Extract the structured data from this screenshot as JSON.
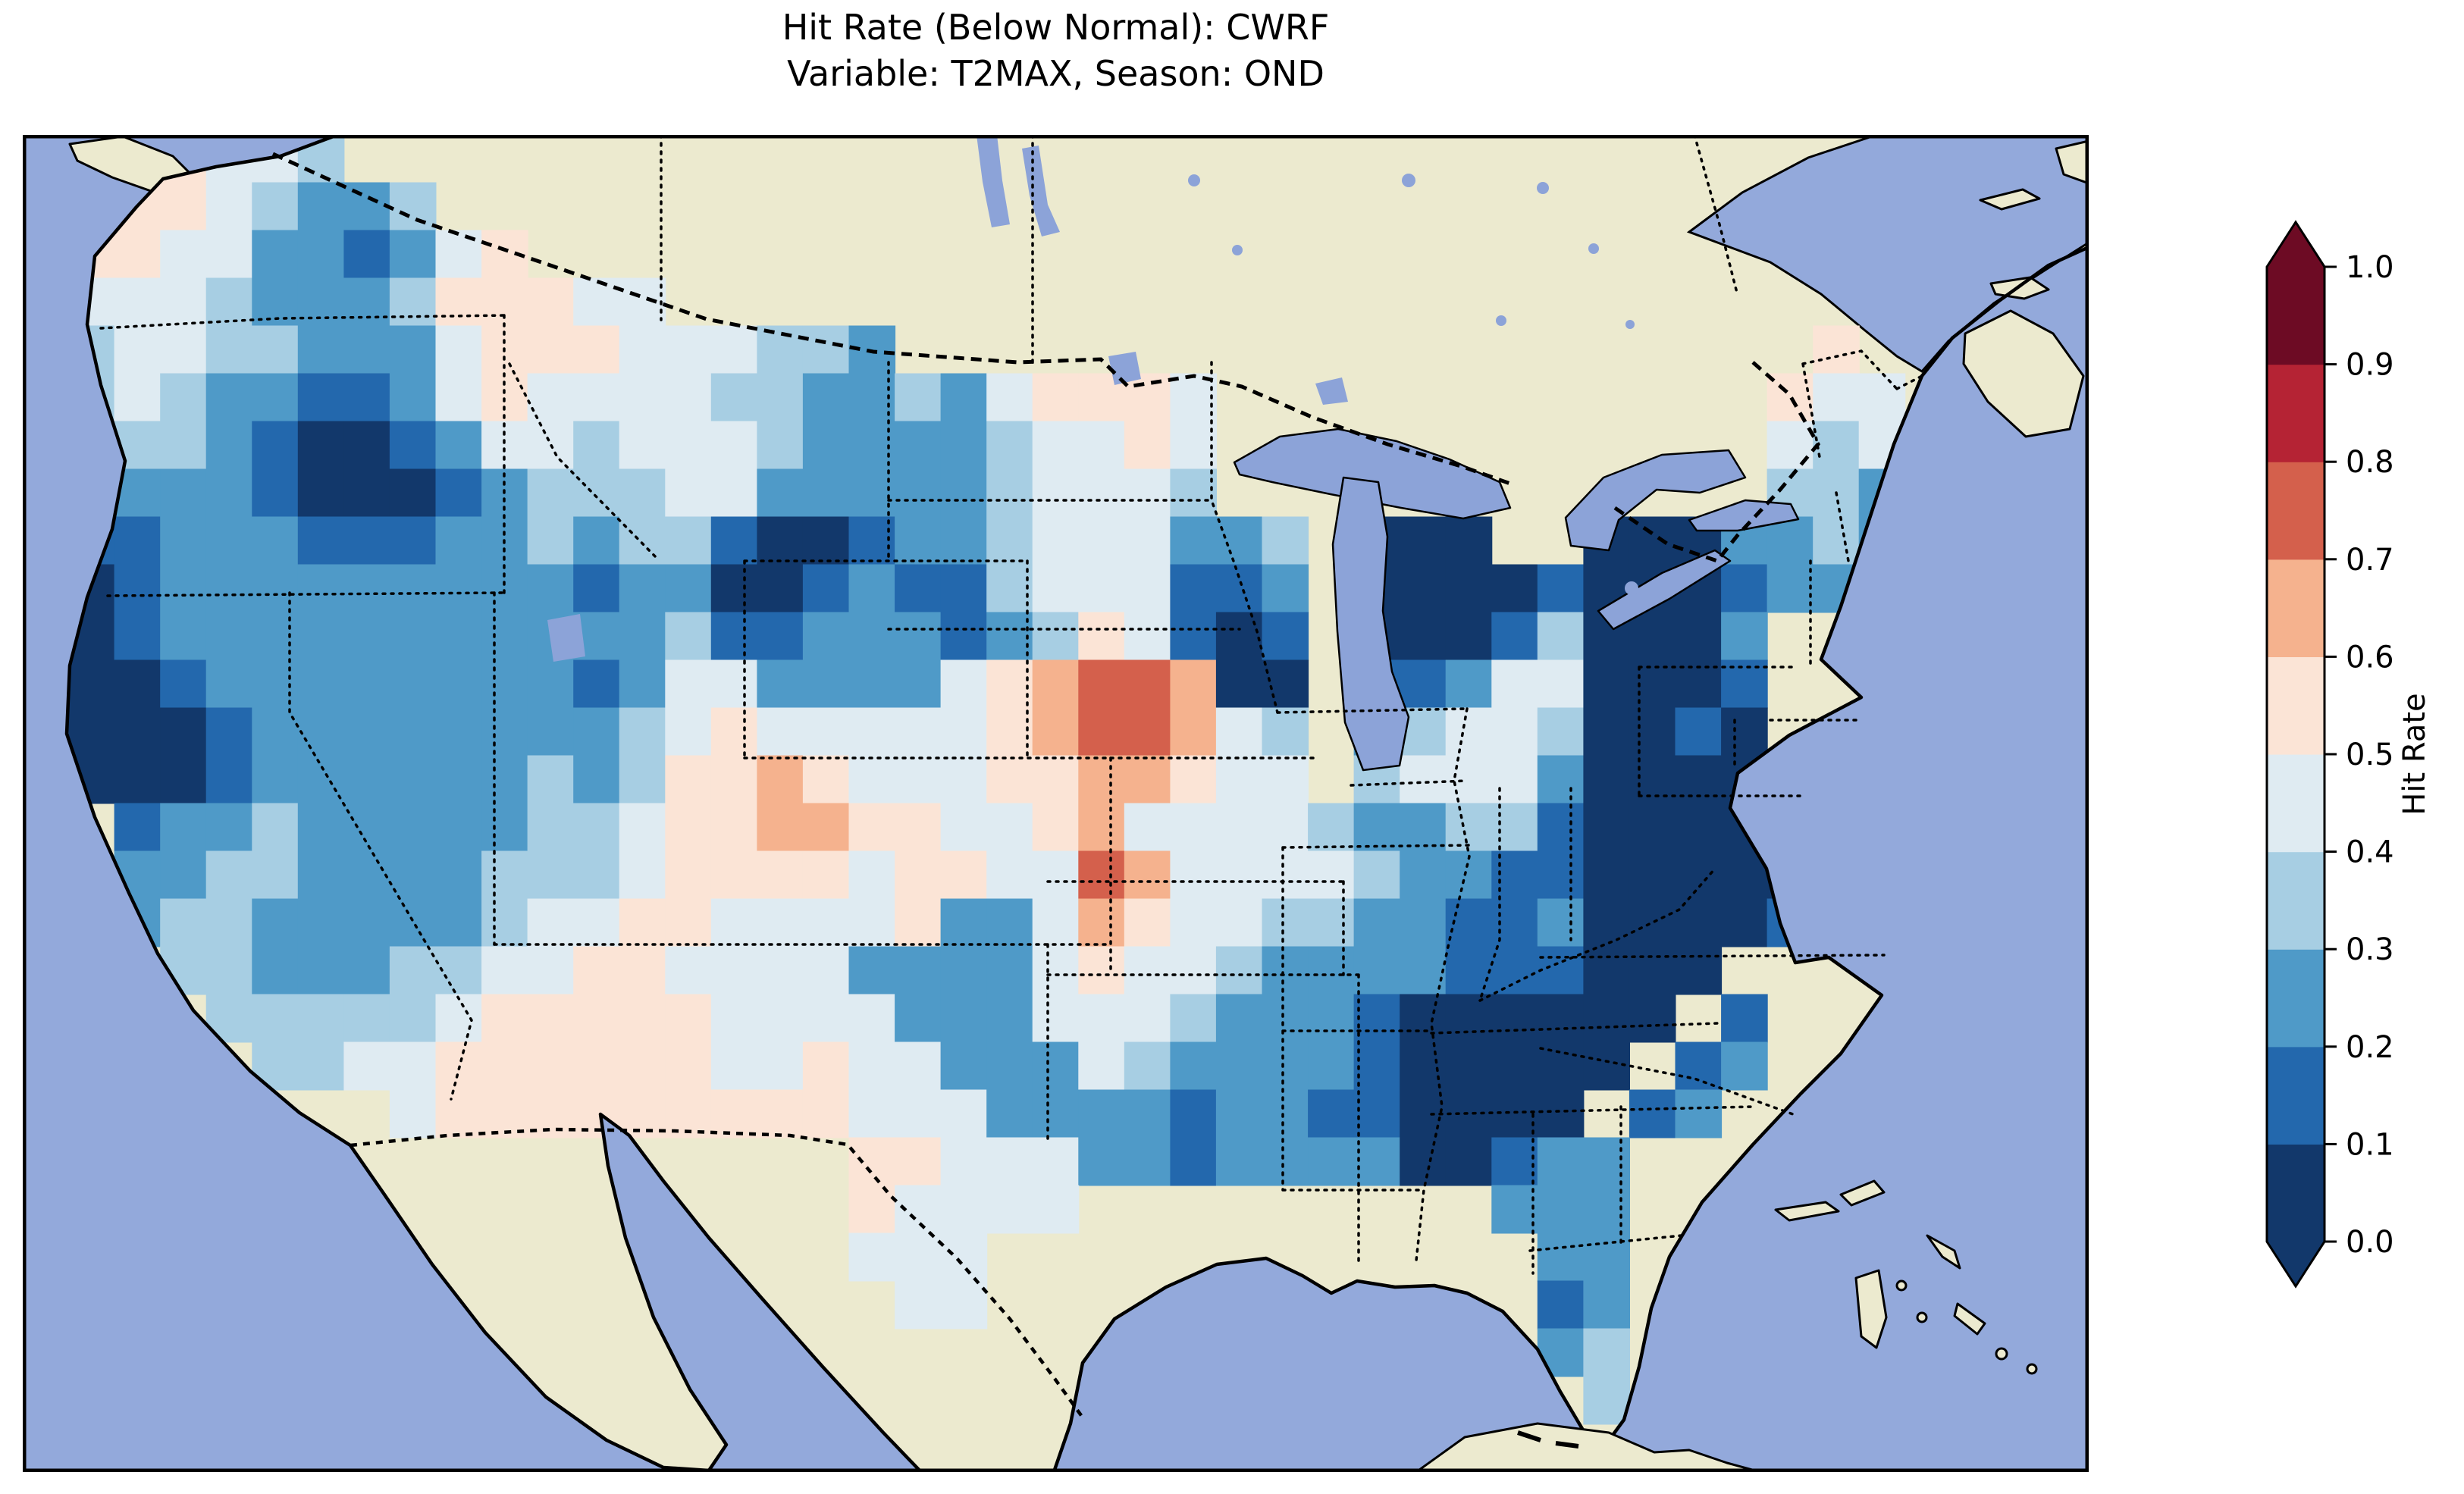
{
  "title": {
    "line1": "Hit Rate (Below Normal): CWRF",
    "line2": "Variable: T2MAX, Season: OND"
  },
  "colorbar": {
    "label": "Hit Rate",
    "ticks": [
      "1.0",
      "0.9",
      "0.8",
      "0.7",
      "0.6",
      "0.5",
      "0.4",
      "0.3",
      "0.2",
      "0.1",
      "0.0"
    ],
    "tick_values": [
      1.0,
      0.9,
      0.8,
      0.7,
      0.6,
      0.5,
      0.4,
      0.3,
      0.2,
      0.1,
      0.0
    ]
  },
  "chart_data": {
    "type": "heatmap",
    "title": "Hit Rate (Below Normal): CWRF",
    "subtitle": "Variable: T2MAX, Season: OND",
    "metric": "Hit Rate (Below Normal)",
    "model": "CWRF",
    "variable": "T2MAX",
    "season": "OND",
    "colorbar_label": "Hit Rate",
    "value_range": [
      0.0,
      1.0
    ],
    "levels": [
      0.0,
      0.1,
      0.2,
      0.3,
      0.4,
      0.5,
      0.6,
      0.7,
      0.8,
      0.9,
      1.0
    ],
    "bin_colors": [
      "#12386b",
      "#2368ad",
      "#4f9ac8",
      "#a7cee3",
      "#dfebf2",
      "#fbe4d6",
      "#f5b28e",
      "#d4604c",
      "#b52334",
      "#6d0b24"
    ],
    "extend_low_color": "#12386b",
    "extend_high_color": "#6d0b24",
    "map_colors": {
      "ocean": "#93a9db",
      "land": "#eceacf",
      "lakes": "#8ca3d8",
      "coastline": "#000000"
    },
    "grid": {
      "cols": 45,
      "rows": 28,
      "legend": "Each character is one map grid cell over CONUS, west-to-east / north-to-south. Digit d means hit rate in bin [d/10,(d+1)/10); '.' means no data (ocean or outside USA).",
      "rows_data": [
        "..55443......................................",
        ".55543223....................................",
        ".5544221245..................................",
        ".4443222355544...............................",
        ".344332224555444332....................5.....",
        ".3432211245444433223245554............544....",
        ".2332100124434443222234454............434....",
        ".1222100012333442222234443............332....",
        ".112221112232331001223444223.000..0002232....",
        ".012222222221220012113444112.00001000122.....",
        ".012222222222231122212354101.000130002.......",
        ".001222222221244222245677600.112440001.......",
        ".000122222222345444445677643.234430010.......",
        ".000122222232355654445566544.3444200000......",
        "..1223222223345566554456444432233100000......",
        "..2233222233345555455447644443221100000 1....",
        "..2332222234455444452246544332211200001......",
        "...3322233445544442222454432222111000........",
        "....33333455555444422244432221000000 1........",
        ".....334455555544544222432222100000 12........",
        "........45555555554442222122110000 12.........",
        "..................55444221222200122..........",
        "..................54444.........222..........",
        "..................444............22..........",
        "...................44............12..........",
        ".................................23..........",
        "..................................3..........",
        "............................................."
      ]
    }
  }
}
